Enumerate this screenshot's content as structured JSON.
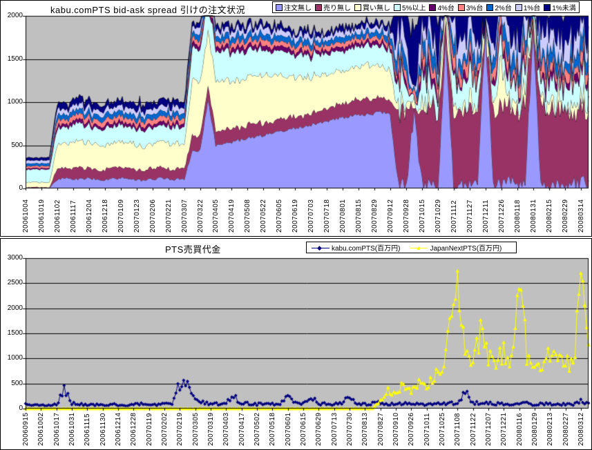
{
  "chart_data": [
    {
      "type": "area",
      "stacked": true,
      "title": "kabu.comPTS bid-ask spread 引けの注文状況",
      "plot_bg": "#C0C0C0",
      "grid": true,
      "grid_color": "#000000",
      "legend_position": "top-right",
      "ylim": [
        0,
        2000
      ],
      "ytick_step": 500,
      "points_per_category": 2,
      "categories": [
        "20061004",
        "20061019",
        "20061102",
        "20061117",
        "20061204",
        "20061218",
        "20070109",
        "20070123",
        "20070206",
        "20070221",
        "20070307",
        "20070322",
        "20070405",
        "20070419",
        "20070508",
        "20070522",
        "20070605",
        "20070619",
        "20070703",
        "20070718",
        "20070801",
        "20070815",
        "20070829",
        "20070912",
        "20070928",
        "20071015",
        "20071029",
        "20071112",
        "20071127",
        "20071211",
        "20071226",
        "20080118",
        "20080131",
        "20080215",
        "20080229",
        "20080314"
      ],
      "series": [
        {
          "name": "注文無し",
          "color": "#9999FF",
          "values": [
            5,
            5,
            6,
            5,
            110,
            118,
            105,
            112,
            120,
            108,
            100,
            115,
            122,
            110,
            104,
            96,
            108,
            118,
            112,
            106,
            110,
            430,
            450,
            1030,
            500,
            520,
            540,
            560,
            580,
            600,
            620,
            640,
            660,
            680,
            700,
            720,
            740,
            760,
            780,
            800,
            820,
            840,
            850,
            860,
            870,
            880,
            870,
            60,
            55,
            900,
            70,
            50,
            65,
            1750,
            60,
            80,
            55,
            70,
            1850,
            65,
            50,
            60,
            75,
            55,
            1900,
            70,
            60,
            55,
            65,
            80,
            60,
            70
          ]
        },
        {
          "name": "売り無し",
          "color": "#993366",
          "values": [
            8,
            9,
            8,
            9,
            120,
            115,
            125,
            130,
            118,
            112,
            120,
            126,
            122,
            116,
            110,
            118,
            124,
            120,
            114,
            118,
            122,
            180,
            170,
            160,
            150,
            165,
            155,
            145,
            150,
            160,
            140,
            135,
            145,
            150,
            140,
            130,
            135,
            140,
            145,
            150,
            160,
            170,
            180,
            190,
            170,
            160,
            150,
            750,
            820,
            50,
            880,
            900,
            840,
            100,
            870,
            820,
            890,
            850,
            60,
            800,
            880,
            860,
            830,
            900,
            40,
            860,
            880,
            840,
            870,
            800,
            830,
            780
          ]
        },
        {
          "name": "買い無し",
          "color": "#FFFFCC",
          "values": [
            55,
            60,
            58,
            56,
            290,
            285,
            300,
            310,
            295,
            280,
            270,
            285,
            295,
            305,
            290,
            280,
            288,
            296,
            300,
            290,
            285,
            650,
            640,
            620,
            600,
            580,
            560,
            540,
            550,
            560,
            545,
            530,
            510,
            490,
            470,
            450,
            430,
            420,
            400,
            390,
            380,
            370,
            380,
            400,
            390,
            370,
            350,
            60,
            70,
            50,
            80,
            65,
            55,
            380,
            60,
            75,
            50,
            65,
            70,
            55,
            420,
            60,
            50,
            70,
            65,
            55,
            60,
            75,
            50,
            60,
            70,
            55
          ]
        },
        {
          "name": "5%以上",
          "color": "#CCFFFF",
          "values": [
            145,
            150,
            148,
            152,
            190,
            185,
            195,
            200,
            188,
            182,
            192,
            198,
            185,
            180,
            190,
            195,
            188,
            184,
            192,
            196,
            190,
            380,
            370,
            360,
            350,
            340,
            330,
            320,
            310,
            300,
            290,
            285,
            280,
            270,
            260,
            255,
            250,
            245,
            240,
            235,
            240,
            235,
            230,
            225,
            230,
            235,
            240,
            230,
            250,
            40,
            260,
            240,
            220,
            80,
            250,
            230,
            260,
            240,
            50,
            220,
            260,
            240,
            230,
            250,
            30,
            240,
            260,
            230,
            250,
            220,
            240,
            230
          ]
        },
        {
          "name": "4%台",
          "color": "#660066",
          "values": [
            14,
            15,
            14,
            15,
            40,
            38,
            42,
            44,
            40,
            37,
            41,
            43,
            40,
            38,
            42,
            40,
            39,
            41,
            43,
            40,
            38,
            55,
            58,
            60,
            56,
            52,
            55,
            58,
            54,
            50,
            53,
            56,
            52,
            50,
            48,
            50,
            48,
            46,
            44,
            46,
            48,
            46,
            44,
            42,
            44,
            46,
            48,
            70,
            80,
            20,
            85,
            75,
            65,
            30,
            80,
            70,
            85,
            75,
            25,
            65,
            85,
            75,
            70,
            80,
            15,
            75,
            85,
            70,
            80,
            65,
            75,
            70
          ]
        },
        {
          "name": "3%台",
          "color": "#FF8080",
          "values": [
            24,
            25,
            24,
            25,
            60,
            57,
            62,
            65,
            60,
            56,
            61,
            64,
            60,
            57,
            62,
            60,
            58,
            61,
            64,
            60,
            57,
            60,
            63,
            66,
            62,
            58,
            60,
            63,
            59,
            56,
            58,
            61,
            57,
            55,
            53,
            55,
            53,
            51,
            50,
            52,
            54,
            52,
            50,
            48,
            50,
            52,
            54,
            110,
            130,
            30,
            140,
            120,
            100,
            40,
            130,
            110,
            140,
            120,
            35,
            100,
            140,
            120,
            110,
            130,
            25,
            120,
            140,
            110,
            130,
            100,
            120,
            110
          ]
        },
        {
          "name": "2%台",
          "color": "#0066CC",
          "values": [
            29,
            30,
            29,
            30,
            60,
            58,
            63,
            65,
            60,
            57,
            62,
            64,
            60,
            58,
            63,
            60,
            59,
            62,
            64,
            60,
            58,
            70,
            73,
            76,
            72,
            68,
            70,
            73,
            69,
            66,
            68,
            71,
            67,
            65,
            63,
            65,
            63,
            61,
            60,
            62,
            64,
            62,
            60,
            58,
            60,
            62,
            64,
            130,
            150,
            40,
            160,
            140,
            120,
            50,
            150,
            130,
            160,
            140,
            45,
            120,
            160,
            140,
            130,
            150,
            35,
            140,
            160,
            130,
            150,
            120,
            140,
            130
          ]
        },
        {
          "name": "1%台",
          "color": "#CCCCFF",
          "values": [
            34,
            35,
            34,
            35,
            60,
            58,
            62,
            64,
            60,
            57,
            61,
            63,
            60,
            58,
            62,
            60,
            59,
            61,
            63,
            60,
            58,
            70,
            72,
            75,
            71,
            67,
            69,
            72,
            68,
            65,
            67,
            70,
            66,
            64,
            62,
            64,
            62,
            60,
            59,
            61,
            63,
            61,
            59,
            57,
            59,
            61,
            63,
            190,
            220,
            60,
            240,
            200,
            180,
            70,
            220,
            190,
            240,
            210,
            65,
            180,
            240,
            210,
            190,
            220,
            55,
            200,
            240,
            190,
            220,
            180,
            200,
            190
          ]
        },
        {
          "name": "1%未満",
          "color": "#000080",
          "values": [
            30,
            31,
            30,
            31,
            70,
            68,
            72,
            74,
            70,
            67,
            71,
            73,
            70,
            68,
            72,
            70,
            69,
            71,
            73,
            70,
            68,
            55,
            57,
            60,
            56,
            52,
            55,
            58,
            54,
            50,
            53,
            56,
            52,
            50,
            48,
            50,
            48,
            46,
            44,
            46,
            48,
            46,
            44,
            42,
            44,
            46,
            48,
            600,
            500,
            700,
            400,
            650,
            700,
            500,
            450,
            600,
            350,
            500,
            700,
            650,
            400,
            550,
            600,
            450,
            700,
            500,
            350,
            600,
            450,
            700,
            550,
            600
          ]
        }
      ],
      "jitter": [
        3,
        3,
        3,
        3,
        15,
        15,
        15,
        15,
        15,
        15,
        15,
        15,
        15,
        15,
        15,
        15,
        15,
        15,
        15,
        15,
        15,
        20,
        20,
        20,
        20,
        20,
        20,
        20,
        20,
        20,
        20,
        20,
        20,
        20,
        20,
        20,
        20,
        20,
        20,
        20,
        20,
        20,
        20,
        20,
        20,
        20,
        20,
        90,
        90,
        90,
        90,
        90,
        90,
        90,
        90,
        90,
        90,
        90,
        90,
        90,
        90,
        90,
        90,
        90,
        90,
        90,
        90,
        90,
        90,
        90,
        90,
        90
      ],
      "jitter_factors": [
        1,
        1.3,
        1.6,
        1.3,
        0.6,
        0.8,
        0.9,
        1.2,
        1.6
      ]
    },
    {
      "type": "line",
      "title": "PTS売買代金",
      "plot_bg": "#C0C0C0",
      "grid": true,
      "grid_color": "#000000",
      "legend_position": "top-right",
      "ylim": [
        0,
        3000
      ],
      "ytick_step": 500,
      "points_per_category": 2,
      "categories": [
        "20060915",
        "20061002",
        "20061017",
        "20061031",
        "20061115",
        "20061130",
        "20061214",
        "20061228",
        "20070119",
        "20070202",
        "20070219",
        "20070305",
        "20070319",
        "20070403",
        "20070417",
        "20070502",
        "20070518",
        "20070601",
        "20070615",
        "20070629",
        "20070713",
        "20070730",
        "20070813",
        "20070827",
        "20070910",
        "20070926",
        "20071011",
        "20071025",
        "20071108",
        "20071122",
        "20071207",
        "20071221",
        "20080116",
        "20080129",
        "20080213",
        "20080227",
        "20080312"
      ],
      "series": [
        {
          "name": "kabu.comPTS(百万円)",
          "color": "#000080",
          "marker": "diamond",
          "rel_jitter": 0.3,
          "values": [
            90,
            75,
            60,
            80,
            70,
            390,
            110,
            85,
            75,
            70,
            80,
            90,
            75,
            65,
            80,
            95,
            85,
            70,
            90,
            110,
            520,
            560,
            160,
            120,
            100,
            90,
            110,
            230,
            120,
            95,
            85,
            100,
            90,
            80,
            230,
            110,
            95,
            230,
            100,
            90,
            85,
            95,
            240,
            110,
            90,
            100,
            120,
            90,
            110,
            95,
            100,
            85,
            90,
            80,
            100,
            110,
            95,
            380,
            120,
            100,
            110,
            90,
            100,
            85,
            95,
            110,
            80,
            90,
            100,
            85,
            95,
            80,
            150,
            90
          ]
        },
        {
          "name": "JapanNextPTS(百万円)",
          "color": "#FFFF00",
          "marker": "triangle",
          "rel_jitter": 0.2,
          "values": [
            0,
            0,
            0,
            0,
            0,
            0,
            0,
            0,
            0,
            0,
            0,
            0,
            0,
            0,
            0,
            0,
            0,
            0,
            0,
            0,
            0,
            0,
            0,
            0,
            0,
            0,
            0,
            0,
            0,
            0,
            0,
            0,
            0,
            0,
            0,
            0,
            0,
            0,
            0,
            0,
            0,
            0,
            0,
            0,
            0,
            0,
            150,
            380,
            280,
            500,
            350,
            550,
            450,
            650,
            800,
            1750,
            2450,
            1100,
            950,
            1500,
            1000,
            850,
            1200,
            900,
            2650,
            1100,
            950,
            800,
            1150,
            900,
            1000,
            800,
            2500,
            1200
          ]
        }
      ]
    }
  ]
}
